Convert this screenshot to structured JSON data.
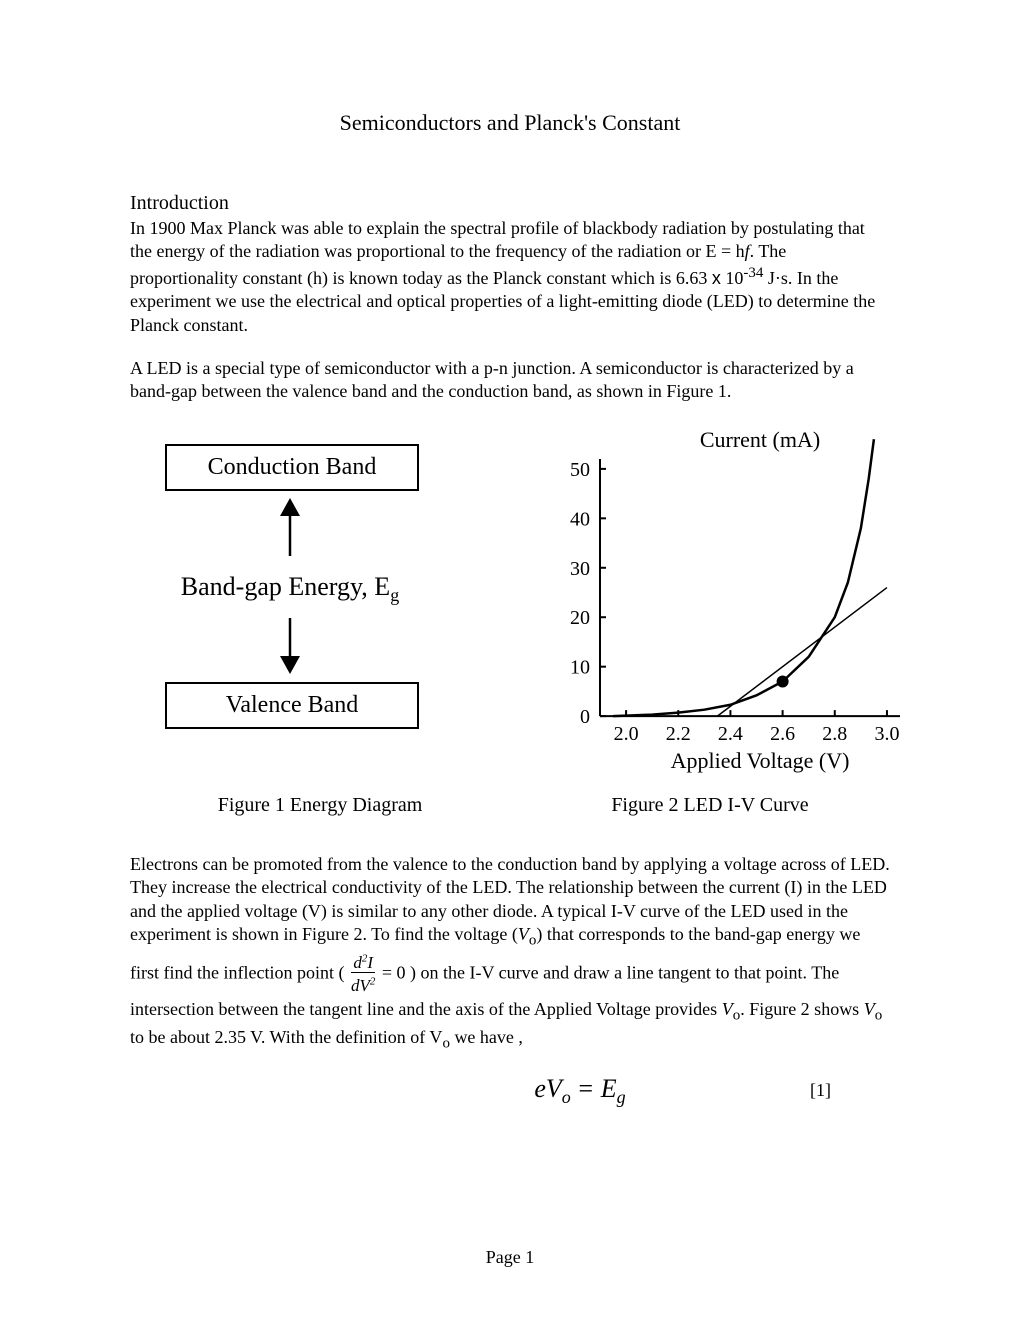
{
  "page": {
    "title": "Semiconductors and Planck's Constant",
    "pageLabel": "Page 1"
  },
  "intro": {
    "heading": "Introduction",
    "p1_part1": "In 1900 Max Planck was able to explain the spectral profile of blackbody radiation by postulating that the energy of the radiation was proportional to the frequency of the radiation or E = h",
    "p1_italic_f": "f",
    "p1_part2": ".   The proportionality constant (h) is known today as the Planck constant which is 6.63 ",
    "p1_x": "x",
    "p1_part3": " 10",
    "p1_sup": "-34",
    "p1_part4": " J·s.   In the experiment we use the electrical and optical properties of a light-emitting diode (LED) to determine the Planck constant.",
    "p2": "A LED is a special type of semiconductor with a p-n junction.  A semiconductor is characterized by a band-gap between the valence band and the conduction band, as shown in Figure 1."
  },
  "fig1": {
    "conduction": "Conduction Band",
    "bandgap": "Band-gap Energy, E",
    "bandgap_sub": "g",
    "valence": "Valence Band",
    "caption": "Figure 1  Energy Diagram",
    "style": {
      "box_border": "#000000",
      "box_border_width": 2.5,
      "arrow_color": "#000000",
      "font_size": 24
    }
  },
  "fig2": {
    "type": "line",
    "xlabel": "Applied Voltage (V)",
    "ylabel": "Current (mA)",
    "caption": "Figure 2  LED   I-V Curve",
    "xlim": [
      1.9,
      3.05
    ],
    "ylim": [
      -2,
      52
    ],
    "xticks": [
      2.0,
      2.2,
      2.4,
      2.6,
      2.8,
      3.0
    ],
    "yticks": [
      0,
      10,
      20,
      30,
      40,
      50
    ],
    "curve": [
      [
        1.95,
        0
      ],
      [
        2.1,
        0.3
      ],
      [
        2.2,
        0.7
      ],
      [
        2.3,
        1.3
      ],
      [
        2.4,
        2.3
      ],
      [
        2.5,
        4.2
      ],
      [
        2.6,
        7.0
      ],
      [
        2.7,
        12
      ],
      [
        2.8,
        20
      ],
      [
        2.85,
        27
      ],
      [
        2.9,
        38
      ],
      [
        2.93,
        48
      ],
      [
        2.95,
        56
      ]
    ],
    "tangent": [
      [
        2.35,
        0
      ],
      [
        3.0,
        26
      ]
    ],
    "inflection_point": [
      2.6,
      7.0
    ],
    "style": {
      "curve_color": "#000000",
      "curve_width": 2.5,
      "tangent_color": "#000000",
      "tangent_width": 1.5,
      "axis_color": "#000000",
      "axis_width": 2,
      "tick_length": 6,
      "point_radius": 6,
      "label_fontsize": 22,
      "tick_fontsize": 20,
      "background_color": "#ffffff"
    }
  },
  "para3": {
    "part1": "Electrons can be promoted from the valence to the conduction band by applying a voltage across of LED.   They increase the electrical conductivity of the LED.   The relationship between the current (I) in the LED and the applied voltage (V) is similar to any other diode.  A typical I-V curve of the LED used in the experiment is shown in Figure 2.   To find the voltage (",
    "Vo_italic": "V",
    "Vo_sub": "o",
    "part2": ") that corresponds to the band-gap energy we first find the inflection point ( ",
    "frac_num": "d²I",
    "frac_den": "dV²",
    "part3": " = 0 ) on the I-V curve and draw a line tangent to that point.  The intersection between the tangent line and the axis of the Applied Voltage provides ",
    "part4": ". Figure 2 shows ",
    "part5": " to be about 2.35 V.  With the definition of V",
    "part6": " we have ,"
  },
  "equation1": {
    "text": "eVₒ = E_g",
    "number": "[1]"
  }
}
